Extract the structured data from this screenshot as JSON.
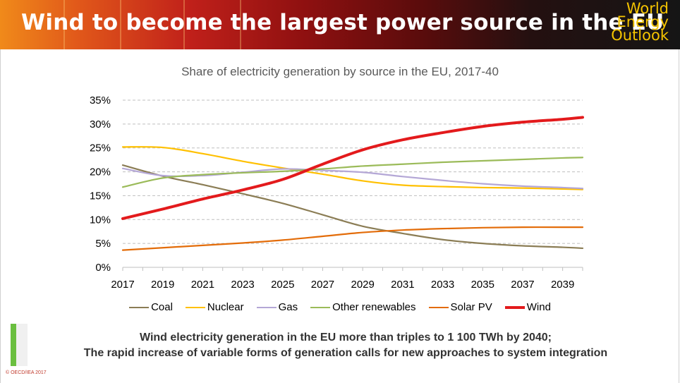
{
  "header": {
    "title": "Wind to become the largest power source in the EU",
    "logo_lines": [
      "World",
      "Energy",
      "Outlook"
    ]
  },
  "caption": {
    "line1": "Wind electricity generation in the EU more than triples to 1 100 TWh by 2040;",
    "line2": "The rapid increase of variable forms of generation calls for new approaches to system integration"
  },
  "copyright": "© OECD/IEA 2017",
  "colors": {
    "accent_bar": "#6abf3f",
    "logo": "#f5c400"
  },
  "chart_data": {
    "type": "line",
    "title": "Share of electricity generation by source in the EU, 2017-40",
    "xlabel": "",
    "ylabel": "",
    "ylim": [
      0,
      35
    ],
    "y_ticks": [
      "0%",
      "5%",
      "10%",
      "15%",
      "20%",
      "25%",
      "30%",
      "35%"
    ],
    "x_ticks": [
      "2017",
      "2019",
      "2021",
      "2023",
      "2025",
      "2027",
      "2029",
      "2031",
      "2033",
      "2035",
      "2037",
      "2039"
    ],
    "xlim": [
      2017,
      2040
    ],
    "grid": "horizontal dashed",
    "legend_position": "bottom",
    "series": [
      {
        "name": "Coal",
        "color": "#8b7d55",
        "width": 2.2,
        "x": [
          2017,
          2019,
          2021,
          2023,
          2025,
          2027,
          2029,
          2031,
          2033,
          2035,
          2037,
          2039,
          2040
        ],
        "y": [
          21.4,
          19.1,
          17.3,
          15.4,
          13.4,
          11.0,
          8.6,
          7.1,
          5.8,
          5.0,
          4.5,
          4.2,
          4.0
        ]
      },
      {
        "name": "Nuclear",
        "color": "#ffc000",
        "width": 2.2,
        "x": [
          2017,
          2019,
          2021,
          2023,
          2025,
          2027,
          2029,
          2031,
          2033,
          2035,
          2037,
          2039,
          2040
        ],
        "y": [
          25.2,
          25.1,
          23.8,
          22.2,
          20.8,
          19.5,
          18.1,
          17.2,
          16.9,
          16.7,
          16.6,
          16.4,
          16.3
        ]
      },
      {
        "name": "Gas",
        "color": "#b4a7d6",
        "width": 2.2,
        "x": [
          2017,
          2019,
          2021,
          2023,
          2025,
          2027,
          2029,
          2031,
          2033,
          2035,
          2037,
          2039,
          2040
        ],
        "y": [
          20.7,
          19.2,
          19.2,
          19.9,
          20.6,
          20.3,
          19.9,
          19.0,
          18.2,
          17.5,
          17.0,
          16.7,
          16.5
        ]
      },
      {
        "name": "Other renewables",
        "color": "#9bbb59",
        "width": 2.2,
        "x": [
          2017,
          2019,
          2021,
          2023,
          2025,
          2027,
          2029,
          2031,
          2033,
          2035,
          2037,
          2039,
          2040
        ],
        "y": [
          16.8,
          18.7,
          19.4,
          19.8,
          20.1,
          20.6,
          21.2,
          21.6,
          22.0,
          22.3,
          22.6,
          22.9,
          23.0
        ]
      },
      {
        "name": "Solar PV",
        "color": "#e36c09",
        "width": 2.2,
        "x": [
          2017,
          2019,
          2021,
          2023,
          2025,
          2027,
          2029,
          2031,
          2033,
          2035,
          2037,
          2039,
          2040
        ],
        "y": [
          3.6,
          4.1,
          4.6,
          5.1,
          5.7,
          6.5,
          7.3,
          7.8,
          8.1,
          8.3,
          8.4,
          8.4,
          8.4
        ]
      },
      {
        "name": "Wind",
        "color": "#e31a1c",
        "width": 4,
        "x": [
          2017,
          2019,
          2021,
          2023,
          2025,
          2027,
          2029,
          2031,
          2033,
          2035,
          2037,
          2039,
          2040
        ],
        "y": [
          10.2,
          12.2,
          14.3,
          16.2,
          18.4,
          21.6,
          24.6,
          26.7,
          28.2,
          29.5,
          30.4,
          31.0,
          31.4
        ]
      }
    ]
  }
}
